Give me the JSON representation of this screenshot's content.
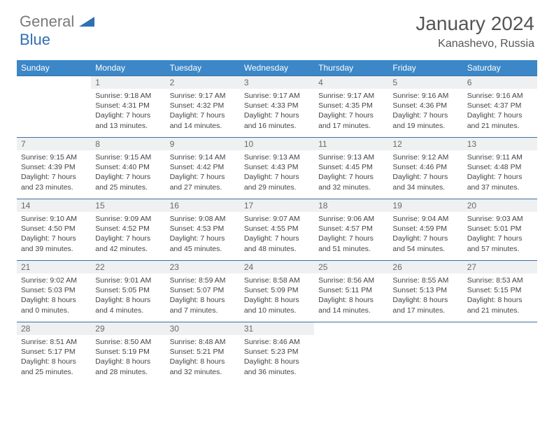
{
  "logo": {
    "word1": "General",
    "word2": "Blue"
  },
  "title": "January 2024",
  "location": "Kanashevo, Russia",
  "colors": {
    "header_bg": "#3b87c8",
    "header_text": "#ffffff",
    "daynum_bg": "#eef0f1",
    "daynum_text": "#6a6a6a",
    "row_border": "#3b6fa0",
    "body_text": "#444444",
    "logo_gray": "#7a7a7a",
    "logo_blue": "#2f6fb3"
  },
  "dayHeaders": [
    "Sunday",
    "Monday",
    "Tuesday",
    "Wednesday",
    "Thursday",
    "Friday",
    "Saturday"
  ],
  "weeks": [
    [
      null,
      {
        "n": "1",
        "sr": "9:18 AM",
        "ss": "4:31 PM",
        "dl": "7 hours and 13 minutes."
      },
      {
        "n": "2",
        "sr": "9:17 AM",
        "ss": "4:32 PM",
        "dl": "7 hours and 14 minutes."
      },
      {
        "n": "3",
        "sr": "9:17 AM",
        "ss": "4:33 PM",
        "dl": "7 hours and 16 minutes."
      },
      {
        "n": "4",
        "sr": "9:17 AM",
        "ss": "4:35 PM",
        "dl": "7 hours and 17 minutes."
      },
      {
        "n": "5",
        "sr": "9:16 AM",
        "ss": "4:36 PM",
        "dl": "7 hours and 19 minutes."
      },
      {
        "n": "6",
        "sr": "9:16 AM",
        "ss": "4:37 PM",
        "dl": "7 hours and 21 minutes."
      }
    ],
    [
      {
        "n": "7",
        "sr": "9:15 AM",
        "ss": "4:39 PM",
        "dl": "7 hours and 23 minutes."
      },
      {
        "n": "8",
        "sr": "9:15 AM",
        "ss": "4:40 PM",
        "dl": "7 hours and 25 minutes."
      },
      {
        "n": "9",
        "sr": "9:14 AM",
        "ss": "4:42 PM",
        "dl": "7 hours and 27 minutes."
      },
      {
        "n": "10",
        "sr": "9:13 AM",
        "ss": "4:43 PM",
        "dl": "7 hours and 29 minutes."
      },
      {
        "n": "11",
        "sr": "9:13 AM",
        "ss": "4:45 PM",
        "dl": "7 hours and 32 minutes."
      },
      {
        "n": "12",
        "sr": "9:12 AM",
        "ss": "4:46 PM",
        "dl": "7 hours and 34 minutes."
      },
      {
        "n": "13",
        "sr": "9:11 AM",
        "ss": "4:48 PM",
        "dl": "7 hours and 37 minutes."
      }
    ],
    [
      {
        "n": "14",
        "sr": "9:10 AM",
        "ss": "4:50 PM",
        "dl": "7 hours and 39 minutes."
      },
      {
        "n": "15",
        "sr": "9:09 AM",
        "ss": "4:52 PM",
        "dl": "7 hours and 42 minutes."
      },
      {
        "n": "16",
        "sr": "9:08 AM",
        "ss": "4:53 PM",
        "dl": "7 hours and 45 minutes."
      },
      {
        "n": "17",
        "sr": "9:07 AM",
        "ss": "4:55 PM",
        "dl": "7 hours and 48 minutes."
      },
      {
        "n": "18",
        "sr": "9:06 AM",
        "ss": "4:57 PM",
        "dl": "7 hours and 51 minutes."
      },
      {
        "n": "19",
        "sr": "9:04 AM",
        "ss": "4:59 PM",
        "dl": "7 hours and 54 minutes."
      },
      {
        "n": "20",
        "sr": "9:03 AM",
        "ss": "5:01 PM",
        "dl": "7 hours and 57 minutes."
      }
    ],
    [
      {
        "n": "21",
        "sr": "9:02 AM",
        "ss": "5:03 PM",
        "dl": "8 hours and 0 minutes."
      },
      {
        "n": "22",
        "sr": "9:01 AM",
        "ss": "5:05 PM",
        "dl": "8 hours and 4 minutes."
      },
      {
        "n": "23",
        "sr": "8:59 AM",
        "ss": "5:07 PM",
        "dl": "8 hours and 7 minutes."
      },
      {
        "n": "24",
        "sr": "8:58 AM",
        "ss": "5:09 PM",
        "dl": "8 hours and 10 minutes."
      },
      {
        "n": "25",
        "sr": "8:56 AM",
        "ss": "5:11 PM",
        "dl": "8 hours and 14 minutes."
      },
      {
        "n": "26",
        "sr": "8:55 AM",
        "ss": "5:13 PM",
        "dl": "8 hours and 17 minutes."
      },
      {
        "n": "27",
        "sr": "8:53 AM",
        "ss": "5:15 PM",
        "dl": "8 hours and 21 minutes."
      }
    ],
    [
      {
        "n": "28",
        "sr": "8:51 AM",
        "ss": "5:17 PM",
        "dl": "8 hours and 25 minutes."
      },
      {
        "n": "29",
        "sr": "8:50 AM",
        "ss": "5:19 PM",
        "dl": "8 hours and 28 minutes."
      },
      {
        "n": "30",
        "sr": "8:48 AM",
        "ss": "5:21 PM",
        "dl": "8 hours and 32 minutes."
      },
      {
        "n": "31",
        "sr": "8:46 AM",
        "ss": "5:23 PM",
        "dl": "8 hours and 36 minutes."
      },
      null,
      null,
      null
    ]
  ],
  "labels": {
    "sunrise": "Sunrise: ",
    "sunset": "Sunset: ",
    "daylight": "Daylight: "
  }
}
